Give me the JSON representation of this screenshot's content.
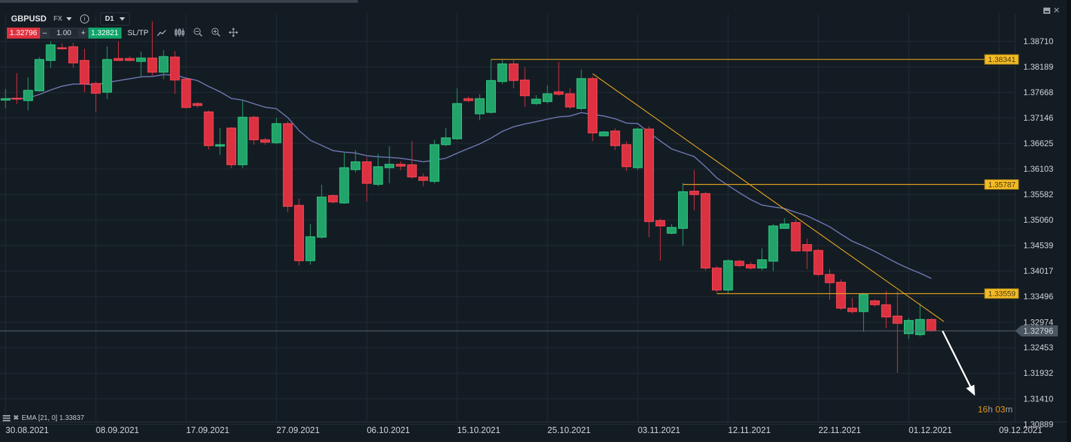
{
  "header": {
    "symbol": "GBPUSD",
    "market": "FX",
    "timeframe": "D1",
    "bid": "1.32796",
    "quantity": "1.00",
    "minus": "–",
    "plus": "+",
    "ask": "1.32821",
    "sltp": "SL/TP",
    "tools": [
      "line-chart-icon",
      "candles-icon",
      "zoom-out-icon",
      "zoom-in-icon",
      "crosshair-icon"
    ]
  },
  "window": {
    "minimize": "minimize-icon",
    "close": "close-icon"
  },
  "indicator_legend": {
    "text": "EMA [21, 0] 1.33837"
  },
  "countdown": {
    "hours": "16",
    "h": "h ",
    "minutes": "03",
    "m": "m"
  },
  "colors": {
    "up": "#22a36a",
    "down": "#dc3140",
    "ema": "#6d78b4",
    "level": "#e4a61f",
    "level_label_bg": "#f3ba25"
  },
  "chart_data": {
    "type": "candlestick",
    "price_ticks": [
      "1.38710",
      "1.38189",
      "1.37668",
      "1.37146",
      "1.36625",
      "1.36103",
      "1.35582",
      "1.35060",
      "1.34539",
      "1.34017",
      "1.33496",
      "1.32974",
      "1.32453",
      "1.31932",
      "1.31410",
      "1.30889"
    ],
    "date_ticks": [
      {
        "index": 0,
        "label": "30.08.2021"
      },
      {
        "index": 8,
        "label": "08.09.2021"
      },
      {
        "index": 16,
        "label": "17.09.2021"
      },
      {
        "index": 24,
        "label": "27.09.2021"
      },
      {
        "index": 32,
        "label": "06.10.2021"
      },
      {
        "index": 40,
        "label": "15.10.2021"
      },
      {
        "index": 48,
        "label": "25.10.2021"
      },
      {
        "index": 56,
        "label": "03.11.2021"
      },
      {
        "index": 64,
        "label": "12.11.2021"
      },
      {
        "index": 72,
        "label": "22.11.2021"
      },
      {
        "index": 80,
        "label": "01.12.2021"
      },
      {
        "index": 88,
        "label": "09.12.2021"
      }
    ],
    "ohlc": [
      [
        1.3751,
        1.3774,
        1.3734,
        1.3754
      ],
      [
        1.3755,
        1.3806,
        1.3743,
        1.3753
      ],
      [
        1.375,
        1.3798,
        1.373,
        1.3771
      ],
      [
        1.377,
        1.3839,
        1.3768,
        1.3834
      ],
      [
        1.3832,
        1.3871,
        1.3817,
        1.3864
      ],
      [
        1.3858,
        1.3867,
        1.3854,
        1.3856
      ],
      [
        1.386,
        1.3868,
        1.3817,
        1.3827
      ],
      [
        1.3832,
        1.3856,
        1.3767,
        1.3784
      ],
      [
        1.3785,
        1.3789,
        1.3727,
        1.3765
      ],
      [
        1.3767,
        1.3861,
        1.3753,
        1.3834
      ],
      [
        1.3836,
        1.3871,
        1.3831,
        1.3832
      ],
      [
        1.3836,
        1.3841,
        1.383,
        1.3832
      ],
      [
        1.383,
        1.385,
        1.3798,
        1.3837
      ],
      [
        1.3837,
        1.3912,
        1.3801,
        1.3808
      ],
      [
        1.3808,
        1.3853,
        1.3794,
        1.384
      ],
      [
        1.3839,
        1.3851,
        1.3764,
        1.3792
      ],
      [
        1.3794,
        1.3796,
        1.3734,
        1.3736
      ],
      [
        1.3744,
        1.3747,
        1.3736,
        1.374
      ],
      [
        1.3727,
        1.373,
        1.365,
        1.3658
      ],
      [
        1.3657,
        1.3694,
        1.3639,
        1.366
      ],
      [
        1.3694,
        1.3696,
        1.3612,
        1.3619
      ],
      [
        1.3619,
        1.3751,
        1.3612,
        1.3716
      ],
      [
        1.3716,
        1.3719,
        1.366,
        1.367
      ],
      [
        1.367,
        1.3674,
        1.366,
        1.3665
      ],
      [
        1.3664,
        1.3715,
        1.3661,
        1.3703
      ],
      [
        1.3703,
        1.3708,
        1.3522,
        1.3534
      ],
      [
        1.3536,
        1.355,
        1.3413,
        1.3423
      ],
      [
        1.3423,
        1.3498,
        1.3415,
        1.3472
      ],
      [
        1.3471,
        1.3578,
        1.3468,
        1.3553
      ],
      [
        1.3556,
        1.3558,
        1.354,
        1.3543
      ],
      [
        1.3541,
        1.3643,
        1.3539,
        1.3613
      ],
      [
        1.3609,
        1.3649,
        1.3603,
        1.3625
      ],
      [
        1.3625,
        1.3634,
        1.3544,
        1.3581
      ],
      [
        1.3579,
        1.3641,
        1.3575,
        1.3615
      ],
      [
        1.3613,
        1.3657,
        1.3581,
        1.362
      ],
      [
        1.362,
        1.3626,
        1.3608,
        1.3616
      ],
      [
        1.3619,
        1.3667,
        1.3591,
        1.3594
      ],
      [
        1.3594,
        1.3601,
        1.3575,
        1.3587
      ],
      [
        1.3585,
        1.367,
        1.3581,
        1.366
      ],
      [
        1.366,
        1.3694,
        1.3657,
        1.3674
      ],
      [
        1.3672,
        1.3775,
        1.367,
        1.3744
      ],
      [
        1.3754,
        1.3758,
        1.3747,
        1.375
      ],
      [
        1.3723,
        1.3763,
        1.371,
        1.3754
      ],
      [
        1.3726,
        1.3834,
        1.3723,
        1.3791
      ],
      [
        1.3789,
        1.3834,
        1.3784,
        1.3825
      ],
      [
        1.3825,
        1.3833,
        1.3775,
        1.3791
      ],
      [
        1.3792,
        1.3818,
        1.3737,
        1.376
      ],
      [
        1.3744,
        1.3761,
        1.3741,
        1.3753
      ],
      [
        1.3748,
        1.3781,
        1.3744,
        1.3764
      ],
      [
        1.3768,
        1.3829,
        1.376,
        1.3763
      ],
      [
        1.3764,
        1.3775,
        1.3733,
        1.3737
      ],
      [
        1.3734,
        1.3813,
        1.373,
        1.3795
      ],
      [
        1.3795,
        1.3799,
        1.3667,
        1.3684
      ],
      [
        1.3678,
        1.3688,
        1.3677,
        1.3686
      ],
      [
        1.3688,
        1.3694,
        1.3649,
        1.3658
      ],
      [
        1.366,
        1.3667,
        1.3606,
        1.3615
      ],
      [
        1.3613,
        1.3695,
        1.3608,
        1.3692
      ],
      [
        1.3692,
        1.3698,
        1.3471,
        1.3503
      ],
      [
        1.3505,
        1.3509,
        1.3423,
        1.3494
      ],
      [
        1.3479,
        1.3498,
        1.3477,
        1.3491
      ],
      [
        1.3489,
        1.3582,
        1.3453,
        1.3564
      ],
      [
        1.3565,
        1.3608,
        1.3526,
        1.3558
      ],
      [
        1.356,
        1.3564,
        1.3403,
        1.3408
      ],
      [
        1.3408,
        1.3412,
        1.3358,
        1.3363
      ],
      [
        1.3363,
        1.3426,
        1.3356,
        1.3423
      ],
      [
        1.3422,
        1.3425,
        1.341,
        1.3413
      ],
      [
        1.3415,
        1.342,
        1.3405,
        1.3408
      ],
      [
        1.3408,
        1.3448,
        1.3403,
        1.3425
      ],
      [
        1.3422,
        1.3498,
        1.3402,
        1.3494
      ],
      [
        1.3489,
        1.351,
        1.3488,
        1.3498
      ],
      [
        1.3501,
        1.3508,
        1.3441,
        1.3443
      ],
      [
        1.3456,
        1.3468,
        1.3406,
        1.3443
      ],
      [
        1.3444,
        1.3447,
        1.3392,
        1.3395
      ],
      [
        1.3395,
        1.3406,
        1.3343,
        1.3378
      ],
      [
        1.3379,
        1.3385,
        1.3322,
        1.3326
      ],
      [
        1.3326,
        1.3347,
        1.3315,
        1.3319
      ],
      [
        1.3319,
        1.3357,
        1.3278,
        1.3354
      ],
      [
        1.3341,
        1.3344,
        1.3329,
        1.3333
      ],
      [
        1.3333,
        1.3361,
        1.3285,
        1.3308
      ],
      [
        1.331,
        1.3361,
        1.3194,
        1.3295
      ],
      [
        1.3274,
        1.3306,
        1.3263,
        1.3301
      ],
      [
        1.3272,
        1.3336,
        1.3268,
        1.3303
      ],
      [
        1.3303,
        1.3305,
        1.3278,
        1.32796
      ]
    ],
    "ema_period": 21,
    "current_price": "1.32796",
    "horizontal_levels": [
      {
        "price": 1.38341,
        "label": "1.38341",
        "from_index": 43
      },
      {
        "price": 1.35787,
        "label": "1.35787",
        "from_index": 60
      },
      {
        "price": 1.33559,
        "label": "1.33559",
        "from_index": 63
      }
    ],
    "trendline": {
      "from": {
        "index": 52,
        "price": 1.3805
      },
      "to": {
        "index": 83.1,
        "price": 1.3299
      }
    }
  }
}
